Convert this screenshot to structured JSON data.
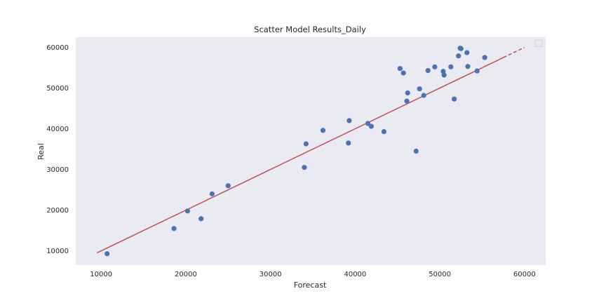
{
  "chart_data": {
    "type": "scatter",
    "title": "Scatter Model Results_Daily",
    "xlabel": "Forecast",
    "ylabel": "Real",
    "xlim": [
      7000,
      62500
    ],
    "ylim": [
      6500,
      62500
    ],
    "xticks": [
      10000,
      20000,
      30000,
      40000,
      50000,
      60000
    ],
    "yticks": [
      10000,
      20000,
      30000,
      40000,
      50000,
      60000
    ],
    "x_tick_labels": [
      "10000",
      "20000",
      "30000",
      "40000",
      "50000",
      "60000"
    ],
    "y_tick_labels": [
      "10000",
      "20000",
      "30000",
      "40000",
      "50000",
      "60000"
    ],
    "grid": false,
    "legend": "top-right, empty",
    "colors": {
      "background": "#eaeaf2",
      "points": "#4c72b0",
      "fit_line": "#c44e52"
    },
    "series": [
      {
        "points": [
          [
            10700,
            9300
          ],
          [
            18600,
            15500
          ],
          [
            20200,
            19800
          ],
          [
            21800,
            17900
          ],
          [
            23100,
            24000
          ],
          [
            25000,
            26000
          ],
          [
            34000,
            30500
          ],
          [
            34200,
            36300
          ],
          [
            36200,
            39600
          ],
          [
            39200,
            36500
          ],
          [
            39300,
            42000
          ],
          [
            41500,
            41300
          ],
          [
            41900,
            40600
          ],
          [
            43400,
            39300
          ],
          [
            45300,
            54800
          ],
          [
            45700,
            53700
          ],
          [
            46100,
            46800
          ],
          [
            46200,
            48800
          ],
          [
            47200,
            34500
          ],
          [
            47600,
            49800
          ],
          [
            48100,
            48200
          ],
          [
            48600,
            54300
          ],
          [
            49400,
            55200
          ],
          [
            50400,
            54100
          ],
          [
            50500,
            53200
          ],
          [
            51300,
            55200
          ],
          [
            51700,
            47300
          ],
          [
            52200,
            57900
          ],
          [
            52400,
            59800
          ],
          [
            52500,
            59700
          ],
          [
            53200,
            58700
          ],
          [
            53300,
            55300
          ],
          [
            54400,
            54200
          ],
          [
            55300,
            57500
          ]
        ]
      }
    ],
    "fit_line": {
      "x_start": 9500,
      "y_start": 9500,
      "x_solid_end": 57500,
      "y_solid_end": 57500,
      "x_end": 60000,
      "y_end": 60000
    }
  }
}
